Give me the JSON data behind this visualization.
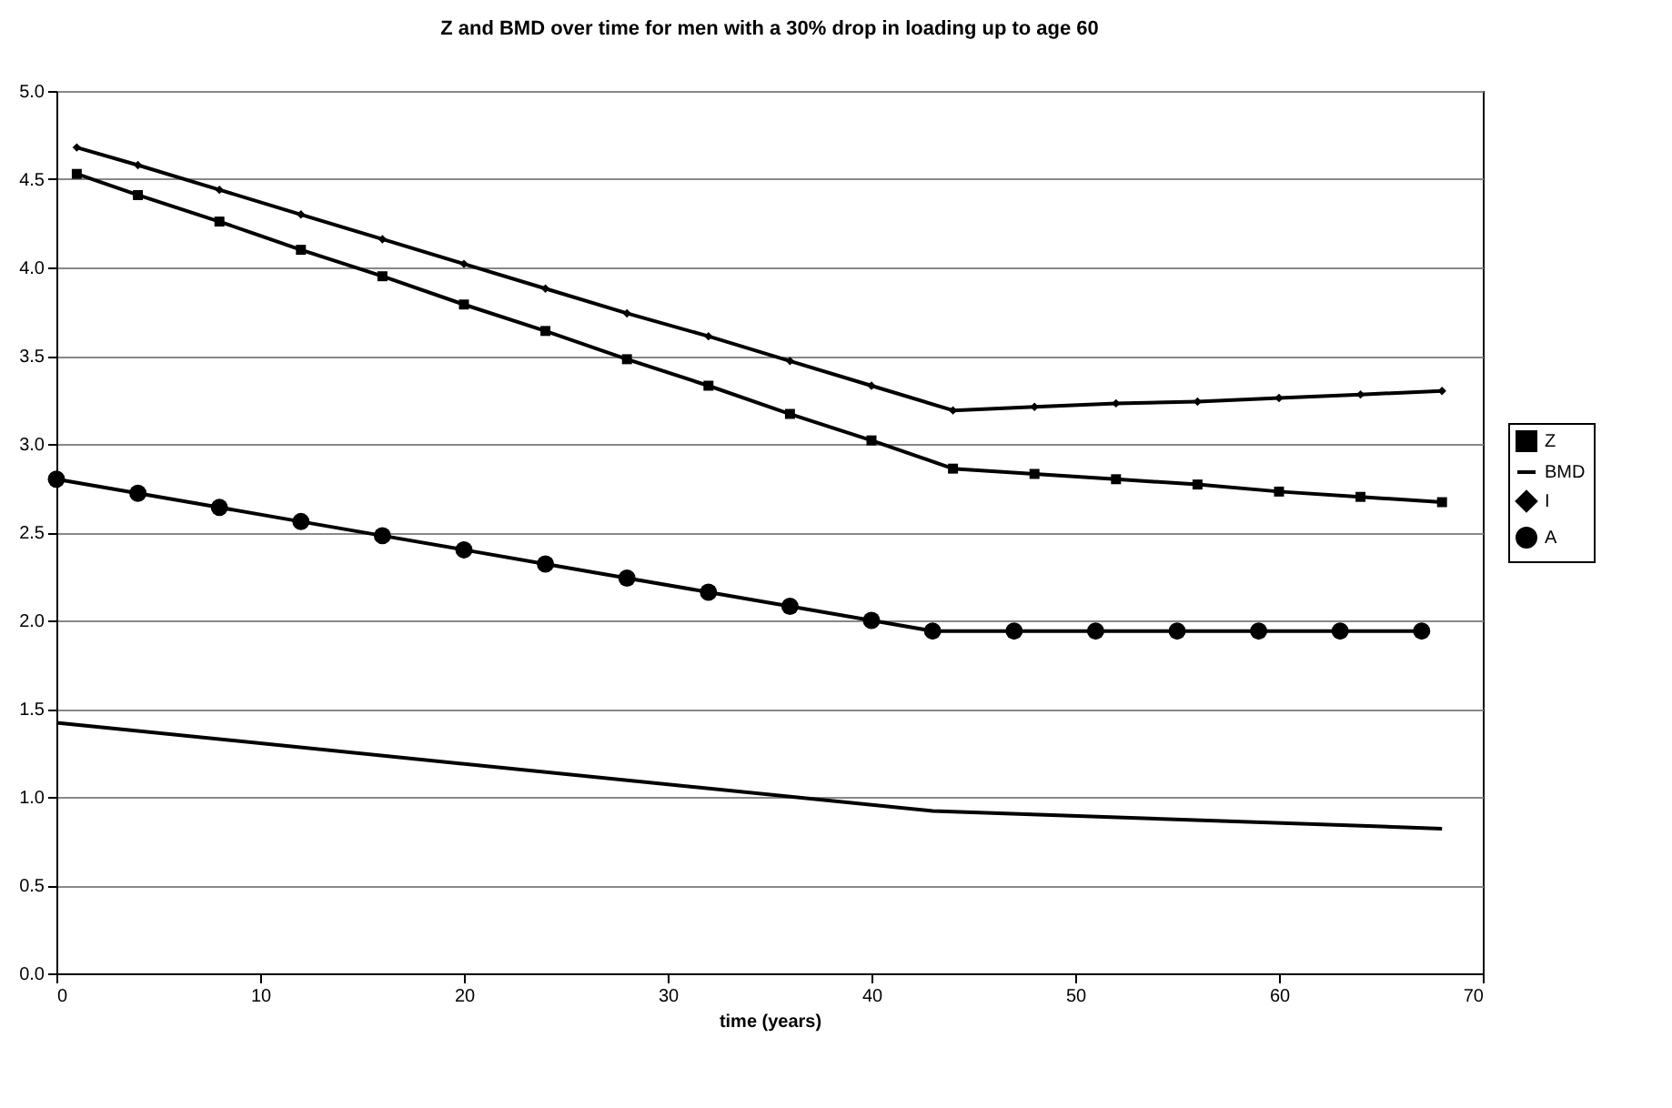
{
  "chart_data": {
    "type": "line",
    "title": "Z and BMD over time for men with a 30% drop in loading up to age 60",
    "xlabel": "time (years)",
    "xlim": [
      0,
      70
    ],
    "xticks": [
      0,
      10,
      20,
      30,
      40,
      50,
      60,
      70
    ],
    "ylim": [
      0,
      5
    ],
    "yticks": [
      {
        "value": 0,
        "label": "0.0"
      },
      {
        "value": 0.5,
        "label": "0.5"
      },
      {
        "value": 1,
        "label": "1.0"
      },
      {
        "value": 1.5,
        "label": "1.5"
      },
      {
        "value": 2,
        "label": "2.0"
      },
      {
        "value": 2.5,
        "label": "2.5"
      },
      {
        "value": 3,
        "label": "3.0"
      },
      {
        "value": 3.5,
        "label": "3.5"
      },
      {
        "value": 4,
        "label": "4.0"
      },
      {
        "value": 4.5,
        "label": "4.5"
      },
      {
        "value": 5,
        "label": "5.0"
      }
    ],
    "grid": "y",
    "legend": "right",
    "series": [
      {
        "name": "Z",
        "color": "#000000",
        "marker": "square",
        "x": [
          1,
          4,
          8,
          12,
          16,
          20,
          24,
          28,
          32,
          36,
          40,
          44,
          48,
          52,
          56,
          60,
          64,
          68
        ],
        "values": [
          4.53,
          4.41,
          4.26,
          4.1,
          3.95,
          3.79,
          3.64,
          3.48,
          3.33,
          3.17,
          3.02,
          2.86,
          2.83,
          2.8,
          2.77,
          2.73,
          2.7,
          2.67
        ]
      },
      {
        "name": "BMD",
        "color": "#000000",
        "marker": "none",
        "x": [
          0,
          43,
          68
        ],
        "values": [
          1.42,
          0.92,
          0.82
        ]
      },
      {
        "name": "I",
        "color": "#000000",
        "marker": "diamond",
        "x": [
          1,
          4,
          8,
          12,
          16,
          20,
          24,
          28,
          32,
          36,
          40,
          44,
          48,
          52,
          56,
          60,
          64,
          68
        ],
        "values": [
          4.68,
          4.58,
          4.44,
          4.3,
          4.16,
          4.02,
          3.88,
          3.74,
          3.61,
          3.47,
          3.33,
          3.19,
          3.21,
          3.23,
          3.24,
          3.26,
          3.28,
          3.3
        ]
      },
      {
        "name": "A",
        "color": "#000000",
        "marker": "circle",
        "x": [
          0,
          4,
          8,
          12,
          16,
          20,
          24,
          28,
          32,
          36,
          40,
          43,
          47,
          51,
          55,
          59,
          63,
          67
        ],
        "values": [
          2.8,
          2.72,
          2.64,
          2.56,
          2.48,
          2.4,
          2.32,
          2.24,
          2.16,
          2.08,
          2.0,
          1.94,
          1.94,
          1.94,
          1.94,
          1.94,
          1.94,
          1.94
        ]
      }
    ]
  }
}
